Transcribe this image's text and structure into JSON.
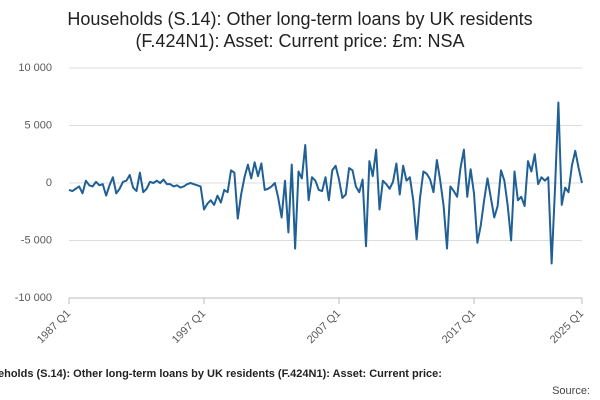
{
  "chart_data": {
    "type": "line",
    "title": [
      "Households (S.14): Other long-term loans by UK residents",
      "(F.424N1): Asset: Current price: £m: NSA"
    ],
    "footer": "eholds (S.14): Other long-term loans by UK residents (F.424N1): Asset: Current price:",
    "source": "Source:",
    "categories": [
      "1987 Q1",
      null,
      null,
      null,
      null,
      null,
      null,
      null,
      null,
      null,
      null,
      null,
      null,
      null,
      null,
      null,
      null,
      null,
      null,
      null,
      null,
      null,
      null,
      null,
      null,
      null,
      null,
      null,
      null,
      null,
      null,
      null,
      null,
      null,
      null,
      null,
      null,
      null,
      null,
      null,
      "1997 Q1",
      null,
      null,
      null,
      null,
      null,
      null,
      null,
      null,
      null,
      null,
      null,
      null,
      null,
      null,
      null,
      null,
      null,
      null,
      null,
      null,
      null,
      null,
      null,
      null,
      null,
      null,
      null,
      null,
      null,
      null,
      null,
      null,
      null,
      null,
      null,
      null,
      null,
      null,
      null,
      "2007 Q1",
      null,
      null,
      null,
      null,
      null,
      null,
      null,
      null,
      null,
      null,
      null,
      null,
      null,
      null,
      null,
      null,
      null,
      null,
      null,
      null,
      null,
      null,
      null,
      null,
      null,
      null,
      null,
      null,
      null,
      null,
      null,
      null,
      null,
      null,
      null,
      null,
      null,
      null,
      null,
      "2017 Q1",
      null,
      null,
      null,
      null,
      null,
      null,
      null,
      null,
      null,
      null,
      null,
      null,
      null,
      null,
      null,
      null,
      null,
      null,
      null,
      null,
      null,
      null,
      null,
      null,
      null,
      null,
      null,
      null,
      null,
      null,
      null,
      "2025 Q1"
    ],
    "series": [
      {
        "color": "#206095",
        "values": [
          -600,
          -700,
          -500,
          -300,
          -900,
          200,
          -200,
          -300,
          100,
          -200,
          -100,
          -1100,
          -200,
          500,
          -900,
          -500,
          100,
          200,
          700,
          -400,
          -700,
          900,
          -800,
          -500,
          100,
          0,
          200,
          0,
          300,
          -100,
          -100,
          -300,
          -200,
          -400,
          -300,
          -100,
          0,
          -100,
          -200,
          -300,
          -2300,
          -1800,
          -1500,
          -1900,
          -1100,
          -1700,
          -600,
          -800,
          1100,
          900,
          -3100,
          -1000,
          500,
          1600,
          400,
          1800,
          600,
          1700,
          -600,
          -500,
          -300,
          0,
          -1300,
          -3000,
          200,
          -4300,
          1600,
          -5700,
          1000,
          400,
          3300,
          -1500,
          500,
          200,
          -600,
          -700,
          500,
          -1500,
          1100,
          1500,
          300,
          -1300,
          -1000,
          1300,
          1100,
          -300,
          -800,
          300,
          -5500,
          1900,
          600,
          2900,
          -2300,
          200,
          -100,
          -500,
          100,
          1700,
          -1000,
          1500,
          200,
          500,
          -1500,
          -4900,
          -1300,
          1000,
          800,
          300,
          -800,
          2000,
          200,
          -2000,
          -5700,
          -300,
          -700,
          -1200,
          1300,
          2900,
          -1200,
          1200,
          -900,
          -5200,
          -3700,
          -1500,
          400,
          -1300,
          -3000,
          -2000,
          1100,
          200,
          -2000,
          -5000,
          1000,
          -1500,
          -1200,
          -2000,
          1900,
          1000,
          2500,
          -100,
          500,
          200,
          500,
          -7000,
          -500,
          7000,
          -1900,
          -400,
          -800,
          1500,
          2800,
          1300,
          0
        ]
      }
    ],
    "ylim": [
      -10000,
      10000
    ],
    "yticks": [
      {
        "value": -10000,
        "label": "-10 000"
      },
      {
        "value": -5000,
        "label": "-5 000"
      },
      0,
      {
        "value": 5000,
        "label": "5 000"
      },
      {
        "value": 10000,
        "label": "10 000"
      }
    ],
    "grid": true
  }
}
